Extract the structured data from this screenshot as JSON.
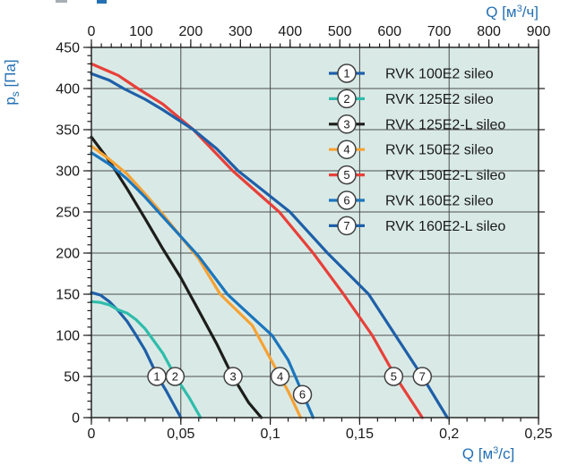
{
  "colors": {
    "axis_label_blue": "#2470b3",
    "tick_text": "#1a1a1a",
    "grid": "#4d4d4d",
    "border": "#333333",
    "plot_background": "#d9eae6",
    "marker_circle_fill": "#ffffff",
    "marker_circle_stroke": "#404040"
  },
  "chart_data": {
    "type": "line",
    "title": "",
    "grid": true,
    "legend_position": "top-right-inside",
    "x_axis_bottom": {
      "label": "Q [м3/с]",
      "label_parts": {
        "pre": "Q [м",
        "sup": "3",
        "post": "/с]"
      },
      "min": 0,
      "max": 0.25,
      "major_tick_values": [
        0,
        0.05,
        0.1,
        0.15,
        0.2,
        0.25
      ],
      "major_tick_labels": [
        "0",
        "0,05",
        "0,1",
        "0,15",
        "0,2",
        "0,25"
      ],
      "minor_step": 0.01
    },
    "x_axis_top": {
      "label": "Q [м3/ч]",
      "label_parts": {
        "pre": "Q [м",
        "sup": "3",
        "post": "/ч]"
      },
      "min": 0,
      "max": 900,
      "major_tick_values": [
        0,
        100,
        200,
        300,
        400,
        500,
        600,
        700,
        800,
        900
      ],
      "major_tick_labels": [
        "0",
        "100",
        "200",
        "300",
        "400",
        "500",
        "600",
        "700",
        "800",
        "900"
      ],
      "minor_step": 20
    },
    "y_axis": {
      "label": "ps [Па]",
      "label_parts": {
        "pre": "p",
        "sub": "s",
        "post": " [Па]"
      },
      "min": 0,
      "max": 450,
      "major_tick_values": [
        0,
        50,
        100,
        150,
        200,
        250,
        300,
        350,
        400,
        450
      ],
      "major_tick_labels": [
        "0",
        "50",
        "100",
        "150",
        "200",
        "250",
        "300",
        "350",
        "400",
        "450"
      ],
      "minor_step": 10
    },
    "series": [
      {
        "number": "1",
        "name": "RVK 100E2 sileo",
        "color": "#1f5fa8",
        "marker_point": {
          "x": 0.0366,
          "y": 50
        },
        "points": [
          [
            0,
            152
          ],
          [
            0.005,
            149
          ],
          [
            0.01,
            141
          ],
          [
            0.015,
            130
          ],
          [
            0.02,
            117
          ],
          [
            0.025,
            100
          ],
          [
            0.03,
            82
          ],
          [
            0.037,
            50
          ],
          [
            0.042,
            32
          ],
          [
            0.047,
            12
          ],
          [
            0.05,
            0
          ]
        ]
      },
      {
        "number": "2",
        "name": "RVK 125E2 sileo",
        "color": "#2fbcab",
        "marker_point": {
          "x": 0.0468,
          "y": 50
        },
        "points": [
          [
            0,
            141
          ],
          [
            0.005,
            140
          ],
          [
            0.01,
            137
          ],
          [
            0.015,
            131
          ],
          [
            0.02,
            127
          ],
          [
            0.025,
            119
          ],
          [
            0.03,
            108
          ],
          [
            0.035,
            93
          ],
          [
            0.04,
            78
          ],
          [
            0.047,
            50
          ],
          [
            0.055,
            23
          ],
          [
            0.061,
            0
          ]
        ]
      },
      {
        "number": "3",
        "name": "RVK 125E2-L sileo",
        "color": "#1d1d1b",
        "marker_point": {
          "x": 0.0792,
          "y": 50
        },
        "points": [
          [
            0,
            341
          ],
          [
            0.01,
            312
          ],
          [
            0.02,
            278
          ],
          [
            0.03,
            242
          ],
          [
            0.04,
            205
          ],
          [
            0.05,
            170
          ],
          [
            0.06,
            130
          ],
          [
            0.07,
            90
          ],
          [
            0.079,
            50
          ],
          [
            0.088,
            18
          ],
          [
            0.095,
            0
          ]
        ]
      },
      {
        "number": "4",
        "name": "RVK 150E2 sileo",
        "color": "#f7a233",
        "marker_point": {
          "x": 0.1055,
          "y": 50
        },
        "points": [
          [
            0,
            330
          ],
          [
            0.01,
            314
          ],
          [
            0.02,
            296
          ],
          [
            0.03,
            272
          ],
          [
            0.04,
            247
          ],
          [
            0.05,
            220
          ],
          [
            0.06,
            193
          ],
          [
            0.072,
            150
          ],
          [
            0.08,
            133
          ],
          [
            0.09,
            112
          ],
          [
            0.1,
            72
          ],
          [
            0.11,
            32
          ],
          [
            0.117,
            0
          ]
        ]
      },
      {
        "number": "5",
        "name": "RVK 150E2-L sileo",
        "color": "#e8403a",
        "marker_point": {
          "x": 0.169,
          "y": 50
        },
        "points": [
          [
            0,
            430
          ],
          [
            0.015,
            416
          ],
          [
            0.026,
            400
          ],
          [
            0.04,
            381
          ],
          [
            0.057,
            350
          ],
          [
            0.068,
            325
          ],
          [
            0.079,
            300
          ],
          [
            0.092,
            275
          ],
          [
            0.105,
            250
          ],
          [
            0.124,
            200
          ],
          [
            0.141,
            150
          ],
          [
            0.157,
            100
          ],
          [
            0.17,
            50
          ],
          [
            0.185,
            0
          ]
        ]
      },
      {
        "number": "6",
        "name": "RVK 160E2 sileo",
        "color": "#1b75bc",
        "marker_point": {
          "x": 0.118,
          "y": 28
        },
        "points": [
          [
            0,
            322
          ],
          [
            0.01,
            308
          ],
          [
            0.02,
            290
          ],
          [
            0.03,
            268
          ],
          [
            0.04,
            244
          ],
          [
            0.05,
            220
          ],
          [
            0.06,
            196
          ],
          [
            0.076,
            150
          ],
          [
            0.09,
            122
          ],
          [
            0.101,
            100
          ],
          [
            0.11,
            70
          ],
          [
            0.118,
            30
          ],
          [
            0.124,
            0
          ]
        ]
      },
      {
        "number": "7",
        "name": "RVK 160E2-L sileo",
        "color": "#1f5fa8",
        "marker_point": {
          "x": 0.185,
          "y": 50
        },
        "points": [
          [
            0,
            418
          ],
          [
            0.01,
            410
          ],
          [
            0.018,
            400
          ],
          [
            0.03,
            387
          ],
          [
            0.04,
            374
          ],
          [
            0.057,
            350
          ],
          [
            0.07,
            327
          ],
          [
            0.082,
            300
          ],
          [
            0.096,
            276
          ],
          [
            0.111,
            250
          ],
          [
            0.132,
            200
          ],
          [
            0.155,
            150
          ],
          [
            0.17,
            100
          ],
          [
            0.185,
            50
          ],
          [
            0.199,
            0
          ]
        ]
      }
    ]
  }
}
